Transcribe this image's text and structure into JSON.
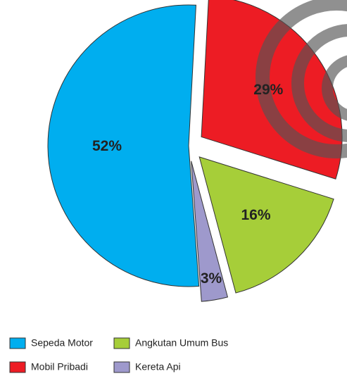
{
  "chart_data": {
    "type": "pie",
    "categories": [
      "Sepeda Motor",
      "Mobil Pribadi",
      "Angkutan Umum Bus",
      "Kereta Api"
    ],
    "values": [
      52,
      29,
      16,
      3
    ],
    "value_labels": [
      "52%",
      "29%",
      "16%",
      "3%"
    ],
    "colors": [
      "#00aeef",
      "#ed1c24",
      "#a6ce39",
      "#9e99cc"
    ]
  }
}
